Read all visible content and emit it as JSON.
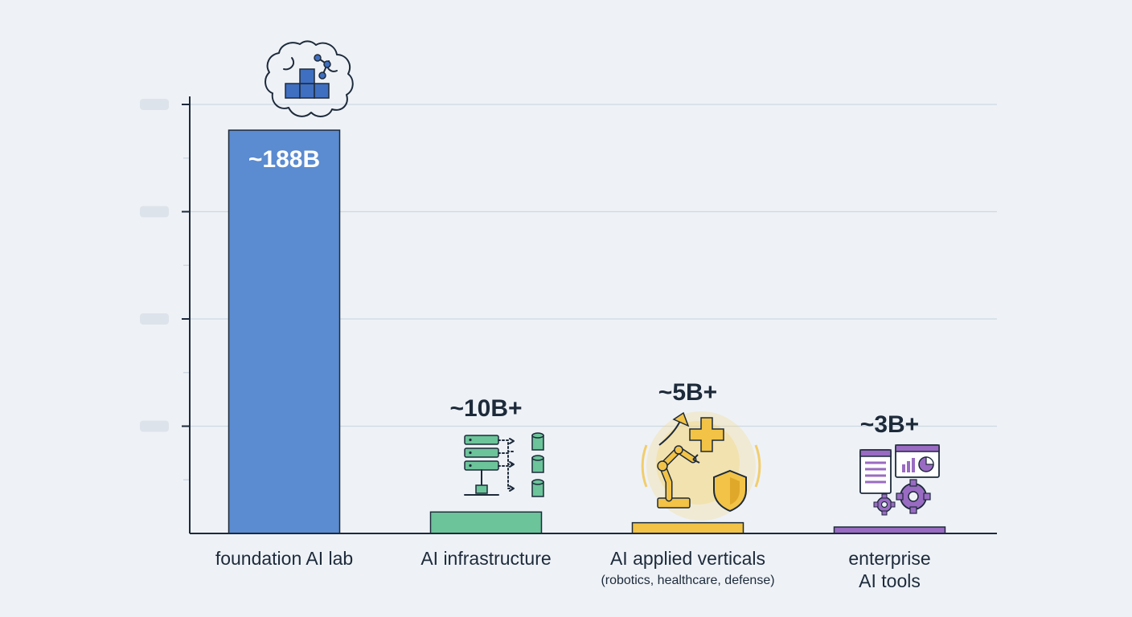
{
  "chart_data": {
    "type": "bar",
    "title": "",
    "xlabel": "",
    "ylabel": "",
    "ylim": [
      0,
      200
    ],
    "grid": true,
    "categories": [
      "foundation AI lab",
      "AI infrastructure",
      "AI applied verticals",
      "enterprise AI tools"
    ],
    "category_sublabels": [
      "",
      "",
      "(robotics, healthcare, defense)",
      ""
    ],
    "values": [
      188,
      10,
      5,
      3
    ],
    "value_labels": [
      "~188B",
      "~10B+",
      "~5B+",
      "~3B+"
    ],
    "colors": [
      "#5b8bd0",
      "#6cc49a",
      "#f2c346",
      "#9a6bc2"
    ],
    "icons": [
      "brain-blocks-icon",
      "server-database-icon",
      "robot-arm-health-shield-icon",
      "dashboard-gear-icon"
    ]
  }
}
